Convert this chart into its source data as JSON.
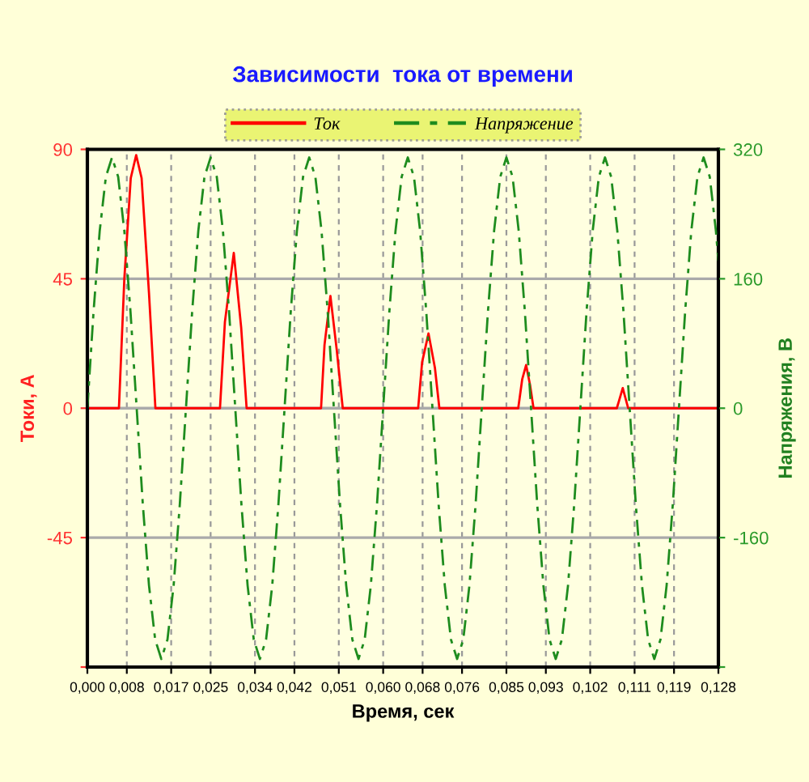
{
  "chart_data": {
    "type": "line",
    "title": "Зависимости  тока от времени",
    "xlabel": "Время, сек",
    "ylabel": "Токи, А",
    "y2label": "Напряжения, В",
    "xlim": [
      0,
      0.128
    ],
    "xticks": [
      {
        "value": 0,
        "label": "0,000"
      },
      {
        "value": 0.008,
        "label": "0,008"
      },
      {
        "value": 0.017,
        "label": "0,017"
      },
      {
        "value": 0.025,
        "label": "0,025"
      },
      {
        "value": 0.034,
        "label": "0,034"
      },
      {
        "value": 0.042,
        "label": "0,042"
      },
      {
        "value": 0.051,
        "label": "0,051"
      },
      {
        "value": 0.06,
        "label": "0,060"
      },
      {
        "value": 0.068,
        "label": "0,068"
      },
      {
        "value": 0.076,
        "label": "0,076"
      },
      {
        "value": 0.085,
        "label": "0,085"
      },
      {
        "value": 0.093,
        "label": "0,093"
      },
      {
        "value": 0.102,
        "label": "0,102"
      },
      {
        "value": 0.111,
        "label": "0,111"
      },
      {
        "value": 0.119,
        "label": "0,119"
      },
      {
        "value": 0.128,
        "label": "0,128"
      }
    ],
    "ylim": [
      -90,
      90
    ],
    "yticks": [
      {
        "value": -90,
        "label": null
      },
      -45,
      0,
      45,
      90
    ],
    "y2lim": [
      -320,
      320
    ],
    "y2ticks": [
      {
        "value": -320,
        "label": null
      },
      -160,
      0,
      160,
      320
    ],
    "grid": true,
    "legend": "top",
    "marker": "none",
    "series": [
      {
        "name": "Ток",
        "color": "#ff0000",
        "line_style": "solid",
        "x": [
          0,
          0.0064,
          0.0075,
          0.0088,
          0.0099,
          0.011,
          0.0125,
          0.0138,
          0.0269,
          0.0279,
          0.0297,
          0.0312,
          0.0323,
          0.0474,
          0.0481,
          0.0493,
          0.0506,
          0.0518,
          0.0671,
          0.0679,
          0.0692,
          0.0705,
          0.0714,
          0.0874,
          0.0882,
          0.089,
          0.0898,
          0.0905,
          0.1074,
          0.1086,
          0.1097,
          0.128
        ],
        "values": [
          0,
          0,
          45,
          80,
          88,
          80,
          40,
          0,
          0,
          30,
          54,
          28,
          0,
          0,
          22,
          39,
          20,
          0,
          0,
          16,
          26,
          14,
          0,
          0,
          10,
          15,
          8,
          0,
          0,
          7,
          0,
          0
        ]
      },
      {
        "name": "Напряжение",
        "color": "#1e8c1e",
        "line_style": "dashdot",
        "axis": "y2",
        "x": [
          0,
          0.00125,
          0.0025,
          0.00375,
          0.005,
          0.00625,
          0.0075,
          0.00875,
          0.01,
          0.01125,
          0.0125,
          0.01375,
          0.015,
          0.01625,
          0.0175,
          0.01875,
          0.02,
          0.02125,
          0.0225,
          0.02375,
          0.025,
          0.02625,
          0.0275,
          0.02875,
          0.03,
          0.03125,
          0.0325,
          0.03375,
          0.035,
          0.03625,
          0.0375,
          0.03875,
          0.04,
          0.04125,
          0.0425,
          0.04375,
          0.045,
          0.04625,
          0.0475,
          0.04875,
          0.05,
          0.05125,
          0.0525,
          0.05375,
          0.055,
          0.05625,
          0.0575,
          0.05875,
          0.06,
          0.06125,
          0.0625,
          0.06375,
          0.065,
          0.06625,
          0.0675,
          0.06875,
          0.07,
          0.07125,
          0.0725,
          0.07375,
          0.075,
          0.07625,
          0.0775,
          0.07875,
          0.08,
          0.08125,
          0.0825,
          0.08375,
          0.085,
          0.08625,
          0.0875,
          0.08875,
          0.09,
          0.09125,
          0.0925,
          0.09375,
          0.095,
          0.09625,
          0.0975,
          0.09875,
          0.1,
          0.10125,
          0.1025,
          0.10375,
          0.105,
          0.10625,
          0.1075,
          0.10875,
          0.11,
          0.11125,
          0.1125,
          0.11375,
          0.115,
          0.11625,
          0.1175,
          0.11875,
          0.12,
          0.12125,
          0.1225,
          0.12375,
          0.125,
          0.12625,
          0.1275,
          0.128
        ],
        "values": [
          0,
          119,
          219,
          286,
          310,
          286,
          219,
          119,
          0,
          -119,
          -219,
          -286,
          -310,
          -286,
          -219,
          -119,
          0,
          119,
          219,
          286,
          310,
          286,
          219,
          119,
          0,
          -119,
          -219,
          -286,
          -310,
          -286,
          -219,
          -119,
          0,
          119,
          219,
          286,
          310,
          286,
          219,
          119,
          0,
          -119,
          -219,
          -286,
          -310,
          -286,
          -219,
          -119,
          0,
          119,
          219,
          286,
          310,
          286,
          219,
          119,
          0,
          -119,
          -219,
          -286,
          -310,
          -286,
          -219,
          -119,
          0,
          119,
          219,
          286,
          310,
          286,
          219,
          119,
          0,
          -119,
          -219,
          -286,
          -310,
          -286,
          -219,
          -119,
          0,
          119,
          219,
          286,
          310,
          286,
          219,
          119,
          0,
          -119,
          -219,
          -286,
          -310,
          -286,
          -219,
          -119,
          0,
          119,
          219,
          286,
          310,
          286,
          219,
          182
        ]
      }
    ]
  }
}
